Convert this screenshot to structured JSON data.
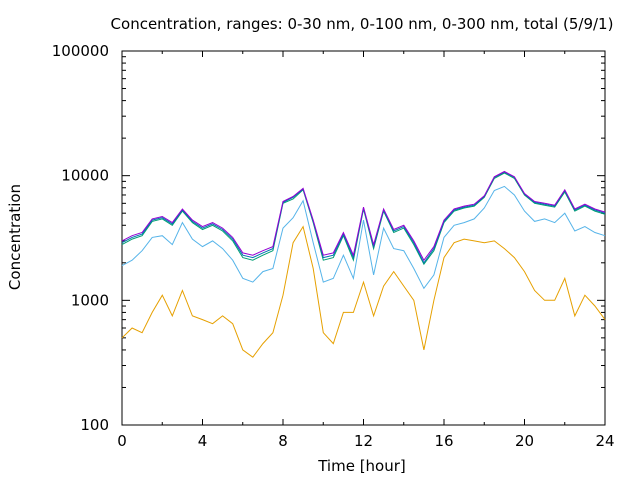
{
  "chart_data": {
    "type": "line",
    "title": "Concentration, ranges: 0-30 nm, 0-100 nm, 0-300 nm, total (5/9/1)",
    "xlabel": "Time [hour]",
    "ylabel": "Concentration",
    "xlim": [
      0,
      24
    ],
    "ylim": [
      100,
      100000
    ],
    "yscale": "log",
    "grid": false,
    "legend": "none",
    "x_ticks": [
      0,
      4,
      8,
      12,
      16,
      20,
      24
    ],
    "x_tick_labels": [
      "0",
      "4",
      "8",
      "12",
      "16",
      "20",
      "24"
    ],
    "y_ticks": [
      100,
      1000,
      10000,
      100000
    ],
    "y_tick_labels": [
      "100",
      "1000",
      "10000",
      "100000"
    ],
    "x": [
      0,
      0.5,
      1,
      1.5,
      2,
      2.5,
      3,
      3.5,
      4,
      4.5,
      5,
      5.5,
      6,
      6.5,
      7,
      7.5,
      8,
      8.5,
      9,
      9.5,
      10,
      10.5,
      11,
      11.5,
      12,
      12.5,
      13,
      13.5,
      14,
      14.5,
      15,
      15.5,
      16,
      16.5,
      17,
      17.5,
      18,
      18.5,
      19,
      19.5,
      20,
      20.5,
      21,
      21.5,
      22,
      22.5,
      23,
      23.5,
      24
    ],
    "series": [
      {
        "color": "#e6a000",
        "values": [
          500,
          600,
          550,
          800,
          1100,
          750,
          1200,
          750,
          700,
          650,
          750,
          650,
          400,
          350,
          450,
          550,
          1100,
          2900,
          3900,
          1800,
          550,
          450,
          800,
          800,
          1400,
          750,
          1300,
          1700,
          1300,
          1000,
          400,
          1000,
          2200,
          2900,
          3100,
          3000,
          2900,
          3000,
          2600,
          2200,
          1700,
          1200,
          1000,
          1000,
          1500,
          750,
          1100,
          900,
          700
        ]
      },
      {
        "color": "#56b4e9",
        "values": [
          1900,
          2100,
          2500,
          3200,
          3300,
          2800,
          4200,
          3100,
          2700,
          3000,
          2600,
          2100,
          1500,
          1400,
          1700,
          1800,
          3800,
          4600,
          6300,
          2900,
          1400,
          1500,
          2300,
          1500,
          4400,
          1600,
          3800,
          2600,
          2500,
          1800,
          1250,
          1600,
          3200,
          4000,
          4200,
          4500,
          5500,
          7600,
          8200,
          7000,
          5200,
          4300,
          4500,
          4200,
          5000,
          3600,
          3900,
          3500,
          3300
        ]
      },
      {
        "color": "#009e73",
        "values": [
          2800,
          3100,
          3300,
          4300,
          4500,
          4000,
          5200,
          4200,
          3700,
          4000,
          3600,
          3000,
          2200,
          2100,
          2300,
          2500,
          6000,
          6500,
          7700,
          4200,
          2100,
          2200,
          3300,
          2100,
          5400,
          2600,
          5200,
          3500,
          3800,
          2800,
          1950,
          2500,
          4200,
          5200,
          5500,
          5700,
          6700,
          9500,
          10500,
          9500,
          7000,
          6000,
          5800,
          5600,
          7400,
          5200,
          5700,
          5200,
          4900
        ]
      },
      {
        "color": "#0072b2",
        "values": [
          2900,
          3200,
          3400,
          4400,
          4600,
          4100,
          5300,
          4300,
          3800,
          4100,
          3700,
          3100,
          2300,
          2200,
          2400,
          2600,
          6100,
          6700,
          7800,
          4300,
          2200,
          2300,
          3400,
          2200,
          5500,
          2700,
          5300,
          3600,
          3900,
          2900,
          2000,
          2600,
          4300,
          5300,
          5600,
          5800,
          6800,
          9700,
          10700,
          9700,
          7100,
          6100,
          5900,
          5700,
          7600,
          5300,
          5800,
          5300,
          5000
        ]
      },
      {
        "color": "#9400d3",
        "values": [
          3000,
          3300,
          3500,
          4500,
          4700,
          4200,
          5400,
          4400,
          3900,
          4200,
          3800,
          3200,
          2400,
          2300,
          2500,
          2700,
          6200,
          6800,
          7900,
          4400,
          2300,
          2400,
          3500,
          2300,
          5600,
          2800,
          5400,
          3700,
          4000,
          3000,
          2100,
          2700,
          4400,
          5400,
          5700,
          5900,
          6900,
          9800,
          10800,
          9800,
          7200,
          6200,
          6000,
          5800,
          7700,
          5400,
          5900,
          5400,
          5100
        ]
      }
    ]
  }
}
